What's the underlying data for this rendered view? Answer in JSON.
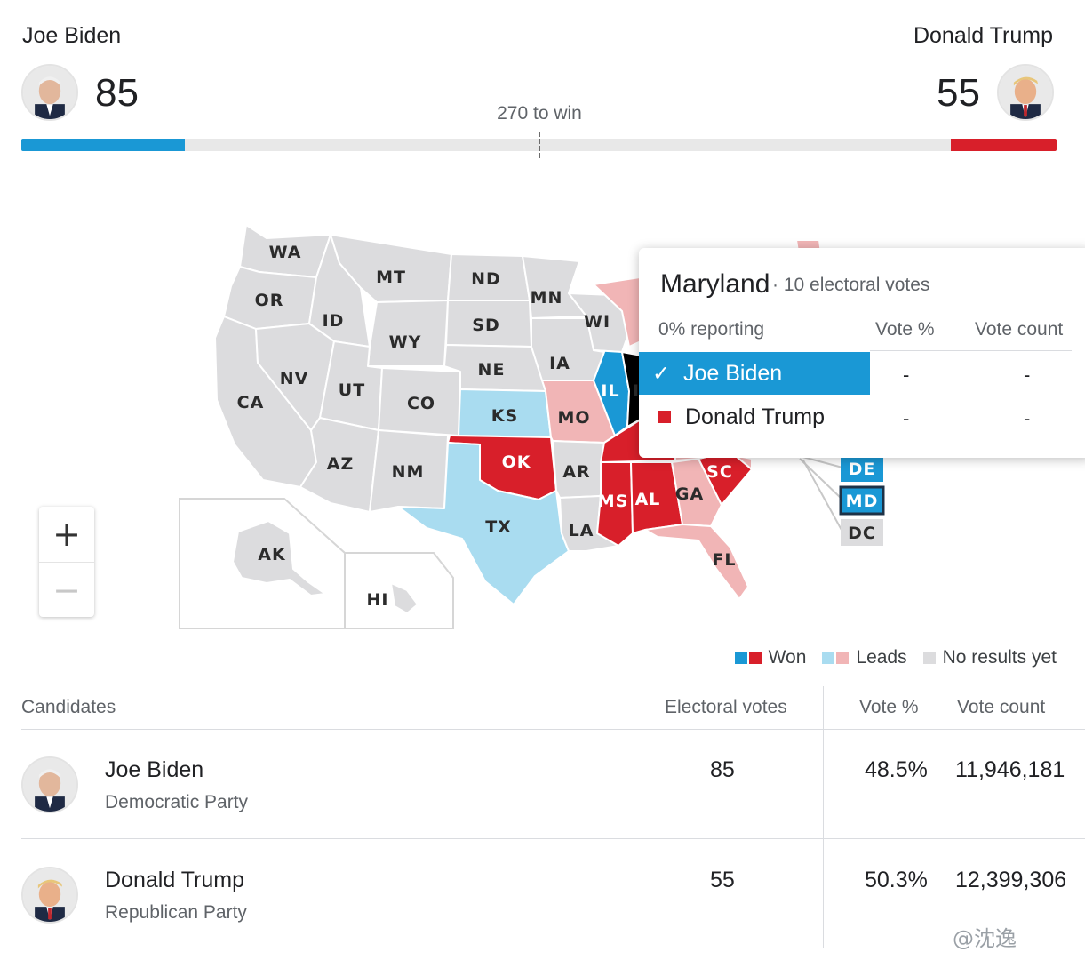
{
  "header": {
    "dem": {
      "name": "Joe Biden",
      "electoral_votes": "85",
      "avatar": "biden-portrait"
    },
    "rep": {
      "name": "Donald Trump",
      "electoral_votes": "55",
      "avatar": "trump-portrait"
    },
    "threshold_label": "270 to win",
    "progress": {
      "dem_votes": 85,
      "rep_votes": 55,
      "total": 538
    }
  },
  "colors": {
    "dem_won": "#1a98d5",
    "dem_lead": "#a9dcf0",
    "rep_won": "#d81f2a",
    "rep_lead": "#f1b5b6",
    "no_results": "#dcdcde"
  },
  "map": {
    "states": {
      "WA": "gray",
      "OR": "gray",
      "CA": "gray",
      "ID": "gray",
      "NV": "gray",
      "MT": "gray",
      "WY": "gray",
      "UT": "gray",
      "AZ": "gray",
      "CO": "gray",
      "NM": "gray",
      "ND": "gray",
      "SD": "gray",
      "NE": "gray",
      "KS": "dem_lead",
      "OK": "rep_won",
      "TX": "dem_lead",
      "MN": "gray",
      "IA": "gray",
      "MO": "rep_lead",
      "AR": "gray",
      "LA": "gray",
      "WI": "gray",
      "IL": "dem_won",
      "MS": "rep_won",
      "AL": "rep_won",
      "GA": "rep_lead",
      "FL": "rep_lead",
      "SC": "rep_won",
      "DE": "dem_won",
      "MD": "dem_won",
      "DC": "gray",
      "AK": "gray",
      "HI": "gray"
    },
    "partial_label": "I"
  },
  "zoom": {
    "in": "+",
    "out": "−"
  },
  "popup": {
    "state": "Maryland",
    "electoral_votes": "· 10 electoral votes",
    "reporting": "0% reporting",
    "col_vote_pct": "Vote %",
    "col_vote_count": "Vote count",
    "rows": [
      {
        "name": "Joe Biden",
        "vote_pct": "-",
        "vote_count": "-",
        "selected": true
      },
      {
        "name": "Donald Trump",
        "vote_pct": "-",
        "vote_count": "-",
        "selected": false
      }
    ]
  },
  "legend": {
    "won": "Won",
    "leads": "Leads",
    "no_results": "No results yet"
  },
  "table": {
    "headers": {
      "candidates": "Candidates",
      "electoral_votes": "Electoral votes",
      "vote_pct": "Vote %",
      "vote_count": "Vote count"
    },
    "rows": [
      {
        "name": "Joe Biden",
        "party": "Democratic Party",
        "electoral_votes": "85",
        "vote_pct": "48.5%",
        "vote_count": "11,946,181"
      },
      {
        "name": "Donald Trump",
        "party": "Republican Party",
        "electoral_votes": "55",
        "vote_pct": "50.3%",
        "vote_count": "12,399,306"
      }
    ]
  },
  "watermark": "@沈逸"
}
